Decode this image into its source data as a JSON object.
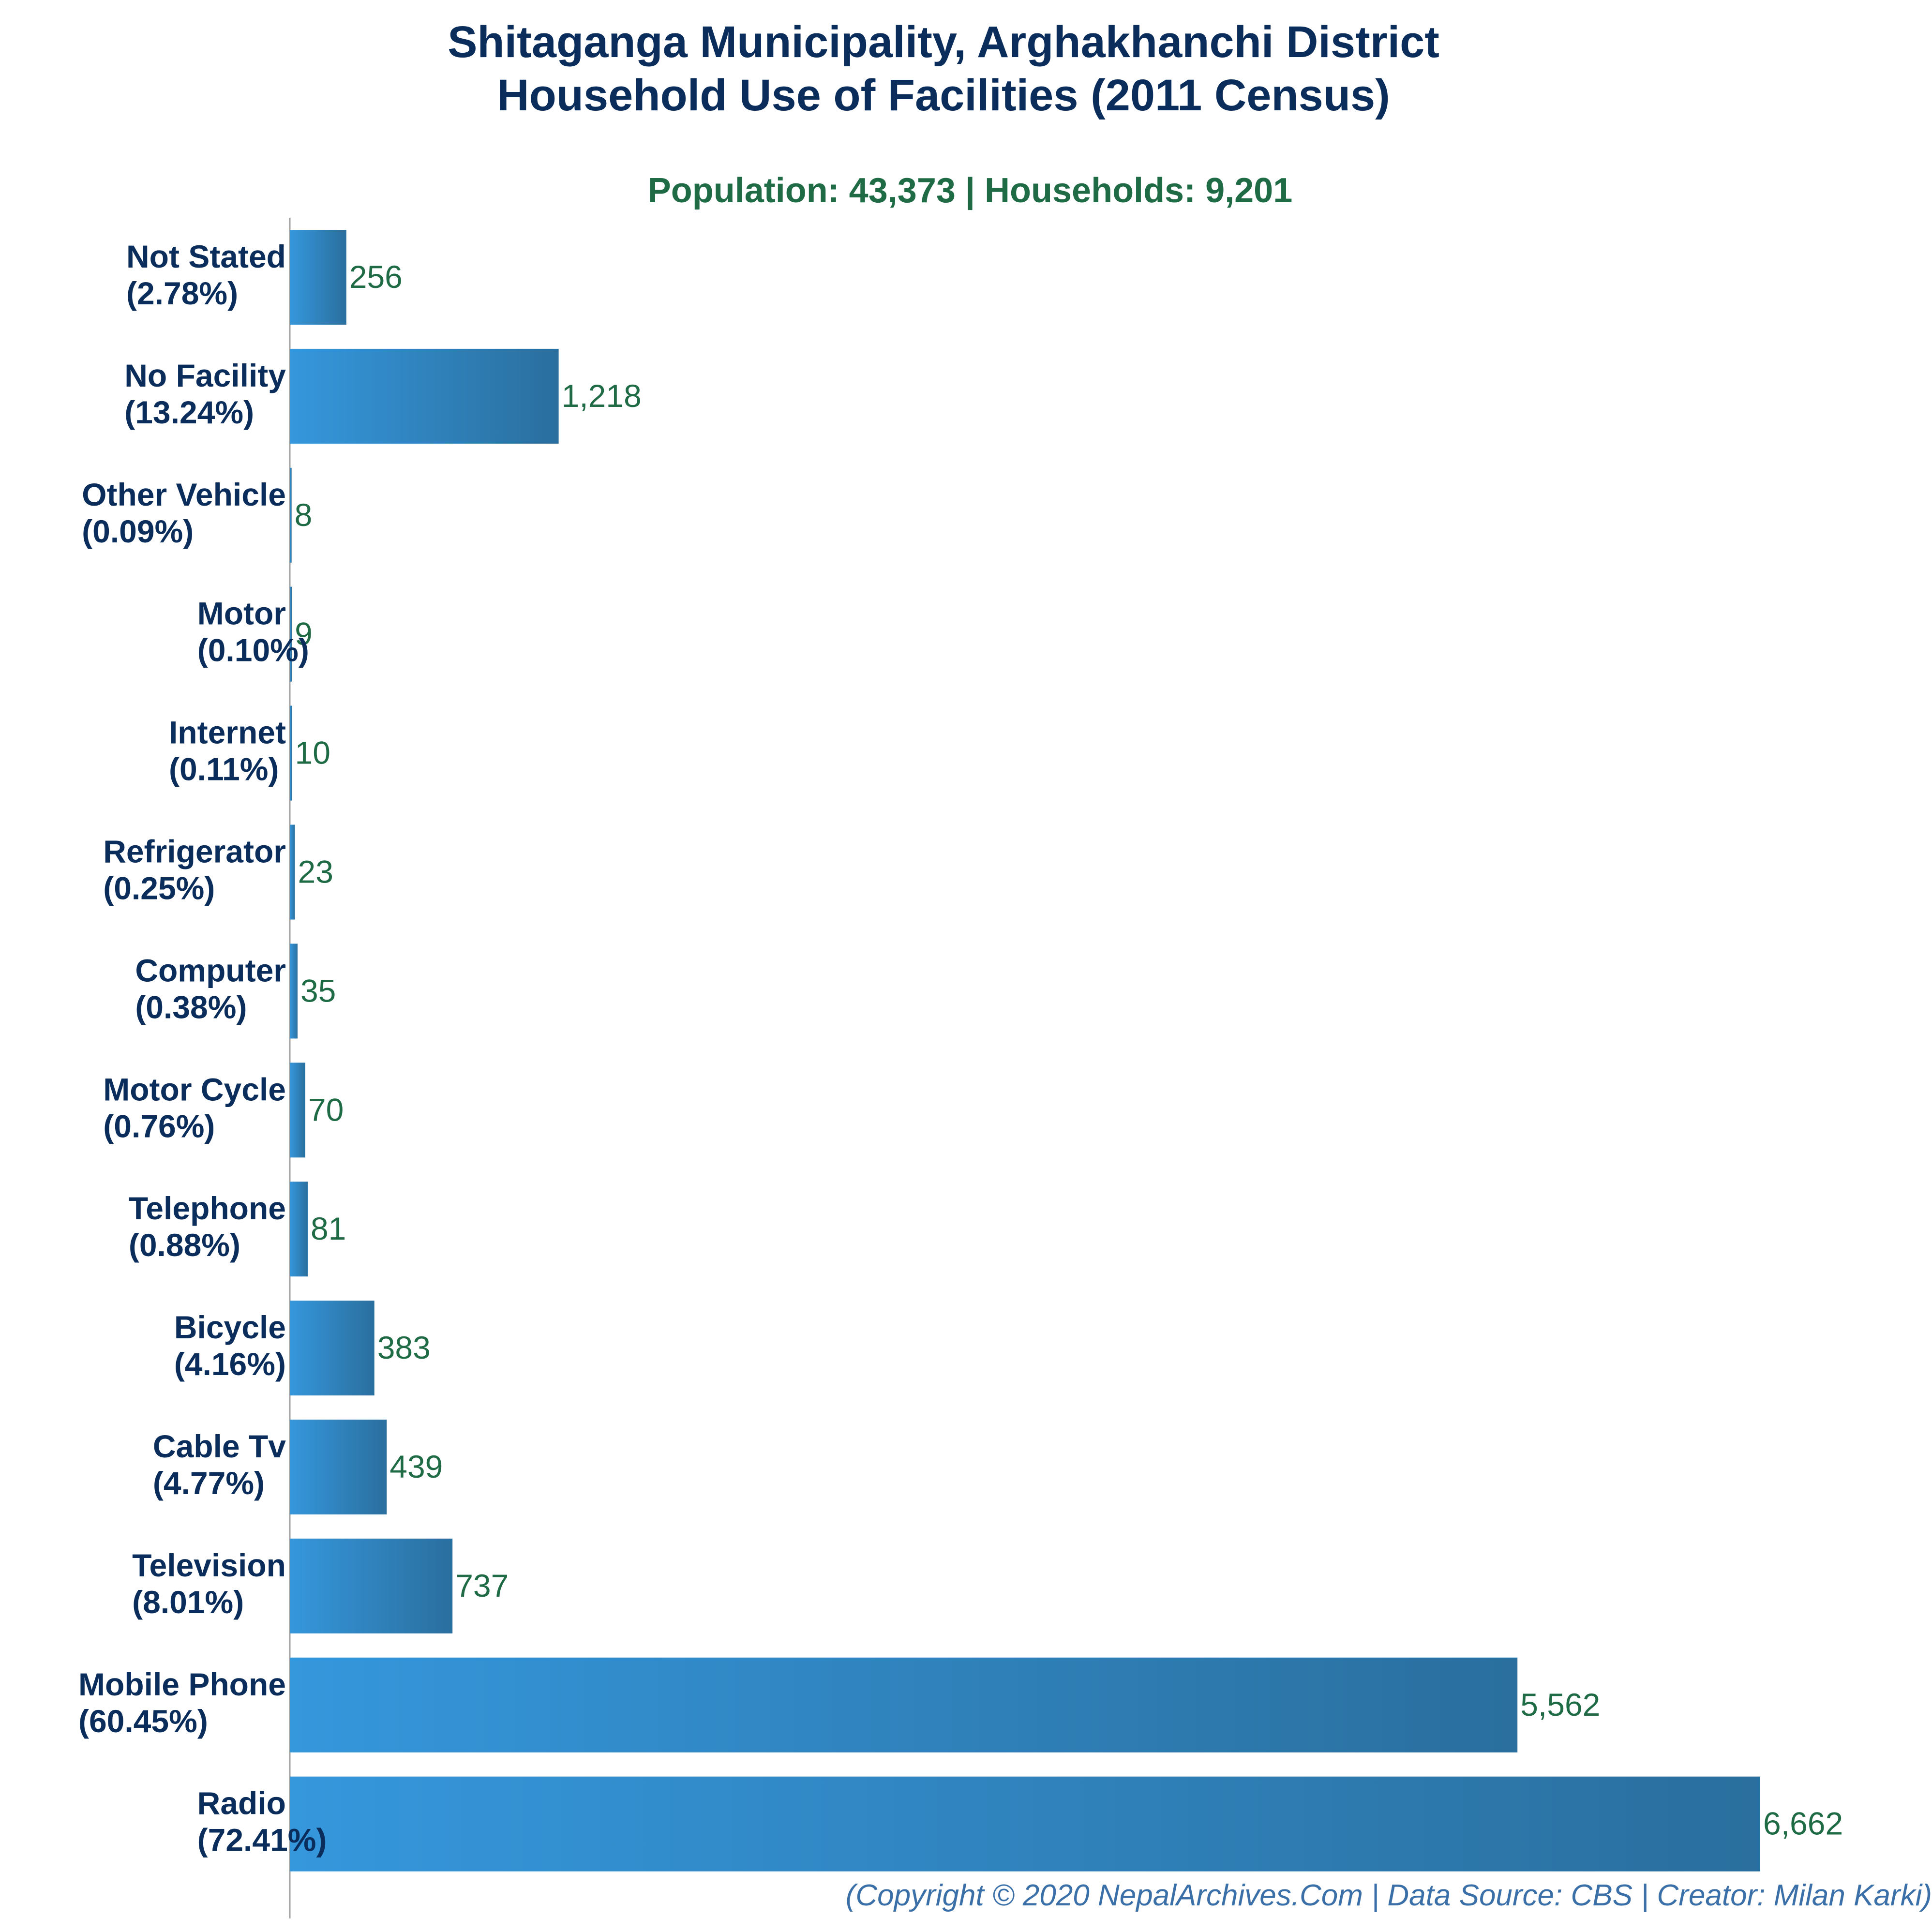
{
  "chart_data": {
    "type": "bar",
    "orientation": "horizontal",
    "title_lines": [
      "Shitaganga Municipality, Arghakhanchi District",
      "Household Use of Facilities (2011 Census)"
    ],
    "subtitle": "Population: 43,373 | Households: 9,201",
    "categories": [
      "Not Stated",
      "No Facility",
      "Other Vehicle",
      "Motor",
      "Internet",
      "Refrigerator",
      "Computer",
      "Motor Cycle",
      "Telephone",
      "Bicycle",
      "Cable Tv",
      "Television",
      "Mobile Phone",
      "Radio"
    ],
    "percent_labels": [
      "(2.78%)",
      "(13.24%)",
      "(0.09%)",
      "(0.10%)",
      "(0.11%)",
      "(0.25%)",
      "(0.38%)",
      "(0.76%)",
      "(0.88%)",
      "(4.16%)",
      "(4.77%)",
      "(8.01%)",
      "(60.45%)",
      "(72.41%)"
    ],
    "values": [
      256,
      1218,
      8,
      9,
      10,
      23,
      35,
      70,
      81,
      383,
      439,
      737,
      5562,
      6662
    ],
    "value_labels": [
      "256",
      "1,218",
      "8",
      "9",
      "10",
      "23",
      "35",
      "70",
      "81",
      "383",
      "439",
      "737",
      "5,562",
      "6,662"
    ],
    "footer": "(Copyright © 2020 NepalArchives.Com | Data Source: CBS | Creator: Milan Karki)",
    "colors": {
      "title": "#0a2d5c",
      "subtitle": "#1e6b45",
      "value_label": "#1e6b45",
      "bar_start": "#3597dc",
      "bar_end": "#2a6f9e",
      "footer": "#3a6fa8"
    }
  }
}
